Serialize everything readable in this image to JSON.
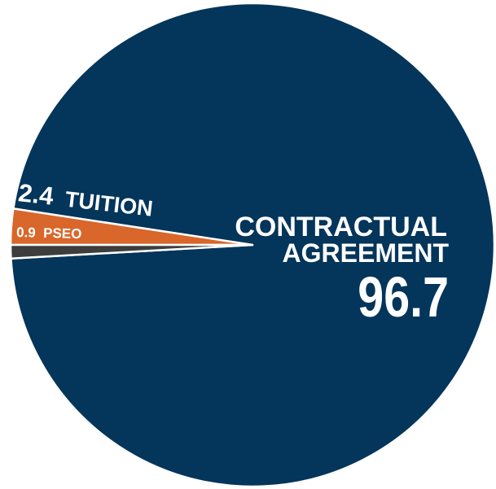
{
  "chart_data": {
    "type": "pie",
    "slices": [
      {
        "label": "CONTRACTUAL AGREEMENT",
        "label_lines": [
          "CONTRACTUAL",
          "AGREEMENT"
        ],
        "value": 96.7,
        "value_text": "96.7",
        "color": "#04355a"
      },
      {
        "label": "TUITION",
        "value": 2.4,
        "value_text": "2.4",
        "color": "#d9662a"
      },
      {
        "label": "PSEO",
        "value": 0.9,
        "value_text": "0.9",
        "color": "#3d3d3d"
      }
    ],
    "slice_border_color": "#ffffff"
  }
}
